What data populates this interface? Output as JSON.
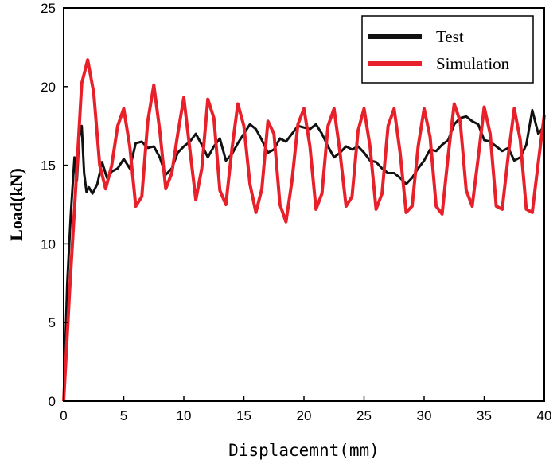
{
  "chart_data": {
    "type": "line",
    "title": "",
    "xlabel": "Displacemnt(mm)",
    "ylabel": "Load(kN)",
    "xlim": [
      0,
      40
    ],
    "ylim": [
      0,
      25
    ],
    "x_ticks": [
      0,
      5,
      10,
      15,
      20,
      25,
      30,
      35,
      40
    ],
    "y_ticks": [
      0,
      5,
      10,
      15,
      20,
      25
    ],
    "grid": false,
    "legend_position": "top-right",
    "series": [
      {
        "name": "Test",
        "color": "#111111",
        "x": [
          0,
          0.3,
          0.6,
          0.9,
          1.1,
          1.3,
          1.5,
          1.7,
          1.9,
          2.1,
          2.4,
          2.8,
          3.2,
          3.6,
          4.0,
          4.5,
          5.0,
          5.5,
          6.0,
          6.5,
          7.0,
          7.5,
          8.0,
          8.5,
          9.0,
          9.5,
          10.0,
          10.5,
          11.0,
          11.5,
          12.0,
          12.5,
          13.0,
          13.5,
          14.0,
          14.5,
          15.0,
          15.5,
          16.0,
          16.5,
          17.0,
          17.5,
          18.0,
          18.5,
          19.0,
          19.5,
          20.0,
          20.5,
          21.0,
          21.5,
          22.0,
          22.5,
          23.0,
          23.5,
          24.0,
          24.5,
          25.0,
          25.5,
          26.0,
          26.5,
          27.0,
          27.5,
          28.0,
          28.5,
          29.0,
          29.5,
          30.0,
          30.5,
          31.0,
          31.5,
          32.0,
          32.5,
          33.0,
          33.5,
          34.0,
          34.5,
          35.0,
          35.5,
          36.0,
          36.5,
          37.0,
          37.5,
          38.0,
          38.5,
          39.0,
          39.5,
          40.0
        ],
        "y": [
          0,
          7.5,
          12,
          15.5,
          14,
          16.8,
          17.5,
          14.5,
          13.3,
          13.6,
          13.2,
          13.8,
          15.2,
          14.2,
          14.6,
          14.8,
          15.4,
          14.8,
          16.4,
          16.5,
          16.1,
          16.2,
          15.5,
          14.4,
          14.8,
          15.8,
          16.2,
          16.5,
          17.0,
          16.3,
          15.5,
          16.2,
          16.7,
          15.3,
          15.7,
          16.4,
          17.0,
          17.6,
          17.3,
          16.6,
          15.8,
          16.0,
          16.7,
          16.5,
          17.0,
          17.5,
          17.4,
          17.3,
          17.6,
          17.0,
          16.2,
          15.5,
          15.8,
          16.2,
          16.0,
          16.2,
          15.8,
          15.3,
          15.2,
          14.8,
          14.5,
          14.5,
          14.2,
          13.8,
          14.2,
          14.8,
          15.3,
          16.0,
          15.9,
          16.3,
          16.6,
          17.6,
          18.0,
          18.1,
          17.8,
          17.6,
          16.6,
          16.5,
          16.2,
          15.9,
          16.1,
          15.3,
          15.5,
          16.3,
          18.5,
          17.0,
          17.5
        ]
      },
      {
        "name": "Simulation",
        "color": "#e8202a",
        "x": [
          0,
          0.5,
          1.0,
          1.5,
          2.0,
          2.5,
          3.0,
          3.5,
          4.0,
          4.5,
          5.0,
          5.5,
          6.0,
          6.5,
          7.0,
          7.5,
          8.0,
          8.5,
          9.0,
          9.5,
          10.0,
          10.5,
          11.0,
          11.5,
          12.0,
          12.5,
          13.0,
          13.5,
          14.0,
          14.5,
          15.0,
          15.5,
          16.0,
          16.5,
          17.0,
          17.5,
          18.0,
          18.5,
          19.0,
          19.5,
          20.0,
          20.5,
          21.0,
          21.5,
          22.0,
          22.5,
          23.0,
          23.5,
          24.0,
          24.5,
          25.0,
          25.5,
          26.0,
          26.5,
          27.0,
          27.5,
          28.0,
          28.5,
          29.0,
          29.5,
          30.0,
          30.5,
          31.0,
          31.5,
          32.0,
          32.5,
          33.0,
          33.5,
          34.0,
          34.5,
          35.0,
          35.5,
          36.0,
          36.5,
          37.0,
          37.5,
          38.0,
          38.5,
          39.0,
          39.5,
          40.0
        ],
        "y": [
          0,
          7,
          13.5,
          20.2,
          21.7,
          19.6,
          15.0,
          13.5,
          15.0,
          17.5,
          18.6,
          16.2,
          12.4,
          13.0,
          17.8,
          20.1,
          17.2,
          13.5,
          14.5,
          17.0,
          19.3,
          16.0,
          12.8,
          14.8,
          19.2,
          18.0,
          13.4,
          12.5,
          16.0,
          18.9,
          17.5,
          13.8,
          12.0,
          13.5,
          17.8,
          17.0,
          12.5,
          11.4,
          14.0,
          17.6,
          18.6,
          16.2,
          12.2,
          13.2,
          17.5,
          18.6,
          15.8,
          12.4,
          13.0,
          17.2,
          18.6,
          16.2,
          12.2,
          13.2,
          17.5,
          18.6,
          15.8,
          12.0,
          12.4,
          16.2,
          18.6,
          16.8,
          12.4,
          11.9,
          15.6,
          18.9,
          17.8,
          13.4,
          12.4,
          15.5,
          18.7,
          17.0,
          12.4,
          12.2,
          15.6,
          18.6,
          16.6,
          12.2,
          12.0,
          15.2,
          18.2
        ]
      }
    ]
  }
}
